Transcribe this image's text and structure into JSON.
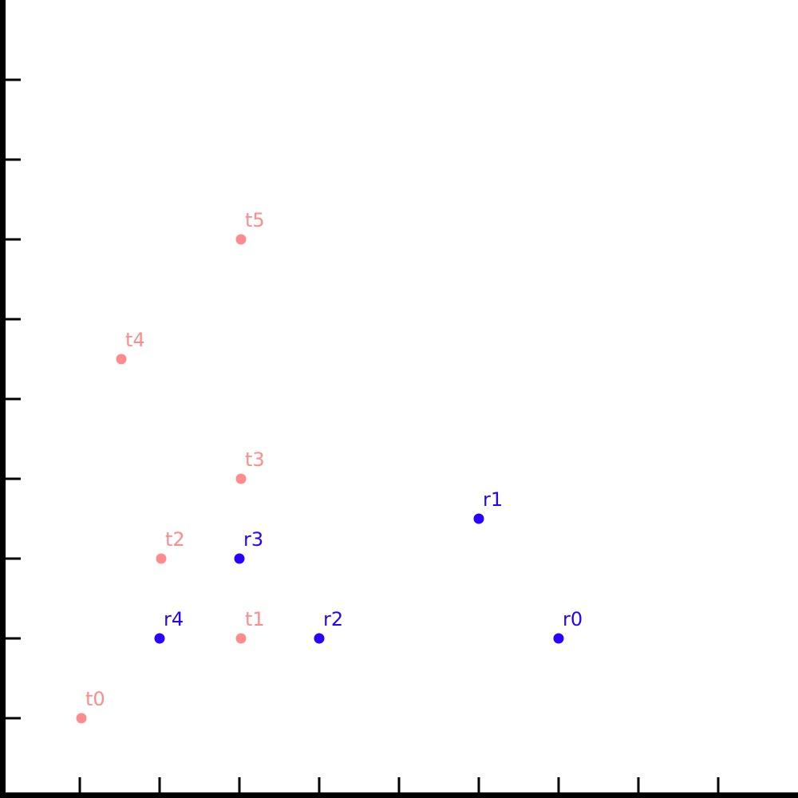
{
  "chart_data": {
    "type": "scatter",
    "title": "",
    "xlabel": "",
    "ylabel": "",
    "xlim": [
      0,
      10
    ],
    "ylim": [
      0,
      10
    ],
    "x_ticks": [
      1,
      2,
      3,
      4,
      5,
      6,
      7,
      8,
      9
    ],
    "y_ticks": [
      1,
      2,
      3,
      4,
      5,
      6,
      7,
      8,
      9
    ],
    "grid": false,
    "series": [
      {
        "color": "#ff8c8c",
        "points": [
          {
            "label": "t0",
            "x": 1,
            "y": 1
          },
          {
            "label": "t1",
            "x": 3,
            "y": 2
          },
          {
            "label": "t2",
            "x": 2,
            "y": 3
          },
          {
            "label": "t3",
            "x": 3,
            "y": 4
          },
          {
            "label": "t4",
            "x": 1.5,
            "y": 5.5
          },
          {
            "label": "t5",
            "x": 3,
            "y": 7
          }
        ]
      },
      {
        "color": "#2a00ff",
        "points": [
          {
            "label": "r0",
            "x": 7,
            "y": 2
          },
          {
            "label": "r1",
            "x": 6,
            "y": 3.5
          },
          {
            "label": "r2",
            "x": 4,
            "y": 2
          },
          {
            "label": "r3",
            "x": 3,
            "y": 3
          },
          {
            "label": "r4",
            "x": 2,
            "y": 2
          }
        ]
      }
    ]
  }
}
